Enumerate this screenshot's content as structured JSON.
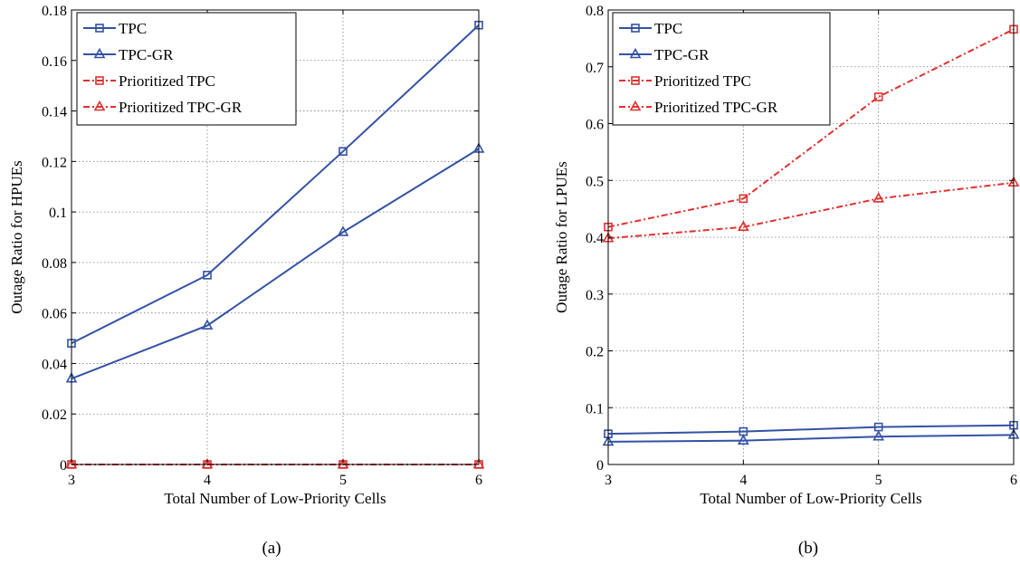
{
  "colors": {
    "blue": "#3352A4",
    "red": "#E03030",
    "grid": "#7F7F7F"
  },
  "chart_data": [
    {
      "type": "line",
      "caption": "(a)",
      "xlabel": "Total Number of Low-Priority Cells",
      "ylabel": "Outage Ratio for HPUEs",
      "xlim": [
        3,
        6
      ],
      "ylim": [
        0,
        0.18
      ],
      "xticks": [
        3,
        4,
        5,
        6
      ],
      "xtick_labels": [
        "3",
        "4",
        "5",
        "6"
      ],
      "yticks": [
        0,
        0.02,
        0.04,
        0.06,
        0.08,
        0.1,
        0.12,
        0.14,
        0.16,
        0.18
      ],
      "ytick_labels": [
        "0",
        "0.02",
        "0.04",
        "0.06",
        "0.08",
        "0.1",
        "0.12",
        "0.14",
        "0.16",
        "0.18"
      ],
      "grid": true,
      "legend_position": "top-left",
      "x": [
        3,
        4,
        5,
        6
      ],
      "series": [
        {
          "name": "TPC",
          "color": "blue",
          "dash": "solid",
          "marker": "square",
          "values": [
            0.048,
            0.075,
            0.124,
            0.174
          ]
        },
        {
          "name": "TPC-GR",
          "color": "blue",
          "dash": "solid",
          "marker": "triangle",
          "values": [
            0.034,
            0.055,
            0.092,
            0.125
          ]
        },
        {
          "name": "Prioritized TPC",
          "color": "red",
          "dash": "dashdot",
          "marker": "square",
          "values": [
            0,
            0,
            0,
            0
          ]
        },
        {
          "name": "Prioritized TPC-GR",
          "color": "red",
          "dash": "dashdot",
          "marker": "triangle",
          "values": [
            0,
            0,
            0,
            0
          ]
        }
      ]
    },
    {
      "type": "line",
      "caption": "(b)",
      "xlabel": "Total Number of Low-Priority Cells",
      "ylabel": "Outage Ratio for LPUEs",
      "xlim": [
        3,
        6
      ],
      "ylim": [
        0,
        0.8
      ],
      "xticks": [
        3,
        4,
        5,
        6
      ],
      "xtick_labels": [
        "3",
        "4",
        "5",
        "6"
      ],
      "yticks": [
        0,
        0.1,
        0.2,
        0.3,
        0.4,
        0.5,
        0.6,
        0.7,
        0.8
      ],
      "ytick_labels": [
        "0",
        "0.1",
        "0.2",
        "0.3",
        "0.4",
        "0.5",
        "0.6",
        "0.7",
        "0.8"
      ],
      "grid": true,
      "legend_position": "top-left",
      "x": [
        3,
        4,
        5,
        6
      ],
      "series": [
        {
          "name": "TPC",
          "color": "blue",
          "dash": "solid",
          "marker": "square",
          "values": [
            0.054,
            0.058,
            0.066,
            0.069
          ]
        },
        {
          "name": "TPC-GR",
          "color": "blue",
          "dash": "solid",
          "marker": "triangle",
          "values": [
            0.04,
            0.042,
            0.049,
            0.052
          ]
        },
        {
          "name": "Prioritized TPC",
          "color": "red",
          "dash": "dashdot",
          "marker": "square",
          "values": [
            0.418,
            0.468,
            0.647,
            0.766
          ]
        },
        {
          "name": "Prioritized TPC-GR",
          "color": "red",
          "dash": "dashdot",
          "marker": "triangle",
          "values": [
            0.398,
            0.418,
            0.468,
            0.496
          ]
        }
      ]
    }
  ]
}
